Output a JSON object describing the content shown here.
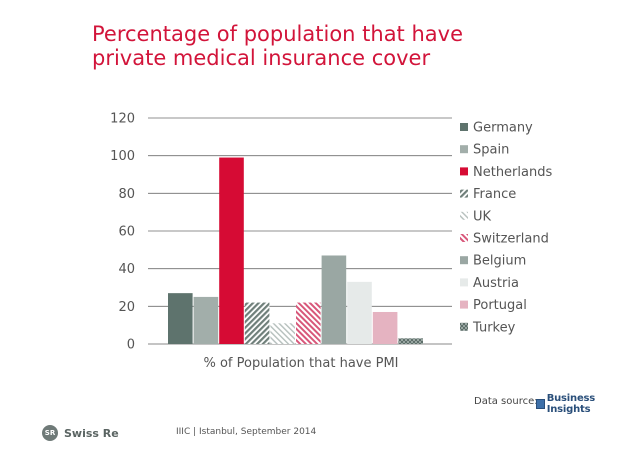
{
  "slide": {
    "title": "Percentage of population that have private medical insurance cover",
    "source_label": "Data source:",
    "source_logo_text": "Business Insights",
    "footer_brand": "Swiss Re",
    "footer_logo_mark": "SR",
    "footer_note": "IIIC | Istanbul, September 2014"
  },
  "chart_data": {
    "type": "bar",
    "title": "Percentage of population that have private medical insurance cover",
    "categories": [
      "% of Population that have PMI"
    ],
    "xlabel": "% of Population that have PMI",
    "ylabel": "",
    "ylim": [
      0,
      120
    ],
    "yticks": [
      0,
      20,
      40,
      60,
      80,
      100,
      120
    ],
    "grid": true,
    "legend_position": "right",
    "series": [
      {
        "name": "Germany",
        "values": [
          27
        ],
        "color": "#5e736d",
        "pattern": "solid"
      },
      {
        "name": "Spain",
        "values": [
          25
        ],
        "color": "#a2aeaa",
        "pattern": "solid"
      },
      {
        "name": "Netherlands",
        "values": [
          99
        ],
        "color": "#d60b34",
        "pattern": "solid"
      },
      {
        "name": "France",
        "values": [
          22
        ],
        "color": "#7a8a85",
        "pattern": "hatch-dense"
      },
      {
        "name": "UK",
        "values": [
          11
        ],
        "color": "#b5bfbc",
        "pattern": "hatch-light"
      },
      {
        "name": "Switzerland",
        "values": [
          22
        ],
        "color": "#d8577a",
        "pattern": "hatch-red"
      },
      {
        "name": "Belgium",
        "values": [
          47
        ],
        "color": "#9aa7a3",
        "pattern": "solid"
      },
      {
        "name": "Austria",
        "values": [
          33
        ],
        "color": "#e6eae9",
        "pattern": "solid"
      },
      {
        "name": "Portugal",
        "values": [
          17
        ],
        "color": "#e5b3c1",
        "pattern": "solid"
      },
      {
        "name": "Turkey",
        "values": [
          3
        ],
        "color": "#6a7e78",
        "pattern": "crosshatch"
      }
    ]
  }
}
